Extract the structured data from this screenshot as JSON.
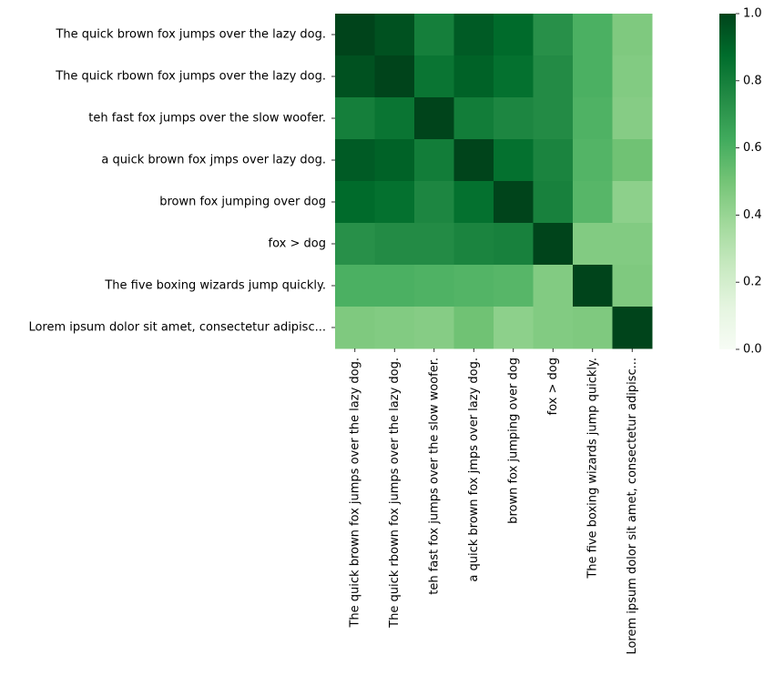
{
  "chart_data": {
    "type": "heatmap",
    "title": "",
    "xlabel": "",
    "ylabel": "",
    "colormap": "Greens",
    "colormap_stops": [
      "#f7fcf5",
      "#e5f5e0",
      "#c7e9c0",
      "#a1d99b",
      "#74c476",
      "#41ab5d",
      "#238b45",
      "#006d2c",
      "#00441b"
    ],
    "vmin": 0,
    "vmax": 1,
    "row_labels": [
      "The quick brown fox jumps over the lazy dog.",
      "The quick rbown fox jumps over the lazy dog.",
      "teh fast fox jumps over the slow woofer.",
      "a quick brown fox jmps over lazy dog.",
      "brown fox jumping over dog",
      "fox > dog",
      "The five boxing wizards jump quickly.",
      "Lorem ipsum dolor sit amet, consectetur adipisc..."
    ],
    "col_labels": [
      "The quick brown fox jumps over the lazy dog.",
      "The quick rbown fox jumps over the lazy dog.",
      "teh fast fox jumps over the slow woofer.",
      "a quick brown fox jmps over lazy dog.",
      "brown fox jumping over dog",
      "fox > dog",
      "The five boxing wizards jump quickly.",
      "Lorem ipsum dolor sit amet, consectetur adipisc..."
    ],
    "values": [
      [
        1.0,
        0.96,
        0.8,
        0.93,
        0.88,
        0.73,
        0.6,
        0.47
      ],
      [
        0.96,
        1.0,
        0.84,
        0.91,
        0.86,
        0.75,
        0.6,
        0.46
      ],
      [
        0.8,
        0.84,
        1.0,
        0.81,
        0.77,
        0.75,
        0.59,
        0.45
      ],
      [
        0.93,
        0.91,
        0.81,
        1.0,
        0.86,
        0.78,
        0.58,
        0.51
      ],
      [
        0.88,
        0.86,
        0.77,
        0.86,
        1.0,
        0.79,
        0.57,
        0.43
      ],
      [
        0.73,
        0.75,
        0.75,
        0.78,
        0.79,
        1.0,
        0.46,
        0.46
      ],
      [
        0.6,
        0.6,
        0.59,
        0.58,
        0.57,
        0.46,
        1.0,
        0.47
      ],
      [
        0.47,
        0.46,
        0.45,
        0.51,
        0.43,
        0.46,
        0.47,
        1.0
      ]
    ],
    "colorbar_ticks": [
      "0.0",
      "0.2",
      "0.4",
      "0.6",
      "0.8",
      "1.0"
    ],
    "colorbar_tick_values": [
      0.0,
      0.2,
      0.4,
      0.6,
      0.8,
      1.0
    ],
    "grid": false
  }
}
